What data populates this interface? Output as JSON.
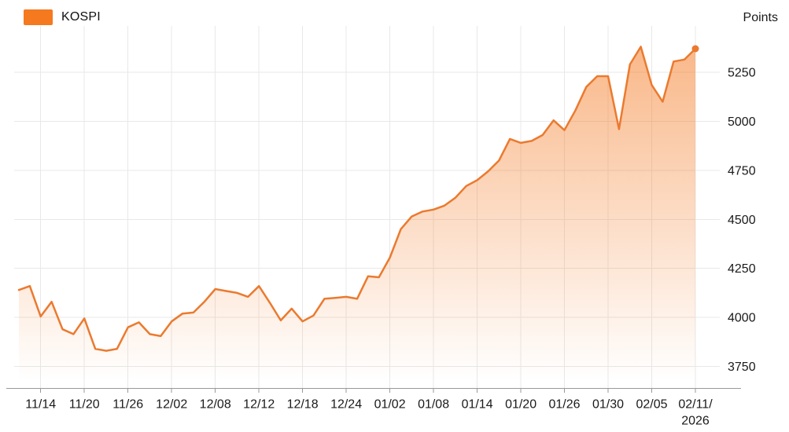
{
  "legend": {
    "label": "KOSPI",
    "swatch_color": "#F4791F"
  },
  "y_axis_unit_label": "Points",
  "chart_data": {
    "type": "area",
    "title": "KOSPI",
    "ylabel": "Points",
    "grid": true,
    "legend_position": "top-left",
    "x": [
      "11/12",
      "11/13",
      "11/14",
      "11/17",
      "11/18",
      "11/19",
      "11/20",
      "11/21",
      "11/24",
      "11/25",
      "11/26",
      "11/27",
      "11/28",
      "12/01",
      "12/02",
      "12/03",
      "12/04",
      "12/05",
      "12/08",
      "12/09",
      "12/10",
      "12/11",
      "12/12",
      "12/15",
      "12/16",
      "12/17",
      "12/18",
      "12/19",
      "12/22",
      "12/23",
      "12/24",
      "12/26",
      "12/29",
      "12/30",
      "01/02",
      "01/05",
      "01/06",
      "01/07",
      "01/08",
      "01/09",
      "01/12",
      "01/13",
      "01/14",
      "01/15",
      "01/16",
      "01/19",
      "01/20",
      "01/21",
      "01/22",
      "01/23",
      "01/26",
      "01/27",
      "01/28",
      "01/29",
      "01/30",
      "02/02",
      "02/03",
      "02/04",
      "02/05",
      "02/06",
      "02/09",
      "02/10",
      "02/11"
    ],
    "series": [
      {
        "name": "KOSPI",
        "values": [
          4140,
          4160,
          4005,
          4080,
          3940,
          3915,
          3995,
          3840,
          3830,
          3840,
          3950,
          3975,
          3915,
          3905,
          3980,
          4020,
          4025,
          4080,
          4145,
          4135,
          4125,
          4105,
          4160,
          4075,
          3985,
          4045,
          3980,
          4010,
          4095,
          4100,
          4105,
          4095,
          4210,
          4205,
          4305,
          4450,
          4515,
          4540,
          4550,
          4570,
          4610,
          4670,
          4700,
          4745,
          4800,
          4910,
          4890,
          4900,
          4930,
          5005,
          4955,
          5055,
          5175,
          5230,
          5230,
          4960,
          5290,
          5380,
          5185,
          5100,
          5305,
          5315,
          5370
        ]
      }
    ],
    "x_tick_labels": [
      "11/14",
      "11/20",
      "11/26",
      "12/02",
      "12/08",
      "12/12",
      "12/18",
      "12/24",
      "01/02",
      "01/08",
      "01/14",
      "01/20",
      "01/26",
      "01/30",
      "02/05",
      "02/11/\n2026"
    ],
    "x_tick_indices": [
      2,
      6,
      10,
      14,
      18,
      22,
      26,
      30,
      34,
      38,
      42,
      46,
      50,
      54,
      58,
      62
    ],
    "y_ticks": [
      3750,
      4000,
      4250,
      4500,
      4750,
      5000,
      5250
    ],
    "ylim": [
      3750,
      5250
    ],
    "end_marker": true,
    "colors": {
      "line": "#EB7A2F",
      "area_top": "rgba(244,124,38,0.55)",
      "area_bottom": "rgba(244,124,38,0)",
      "grid": "#E8E8E8",
      "axis": "#999999",
      "text": "#1A1A1A"
    }
  }
}
